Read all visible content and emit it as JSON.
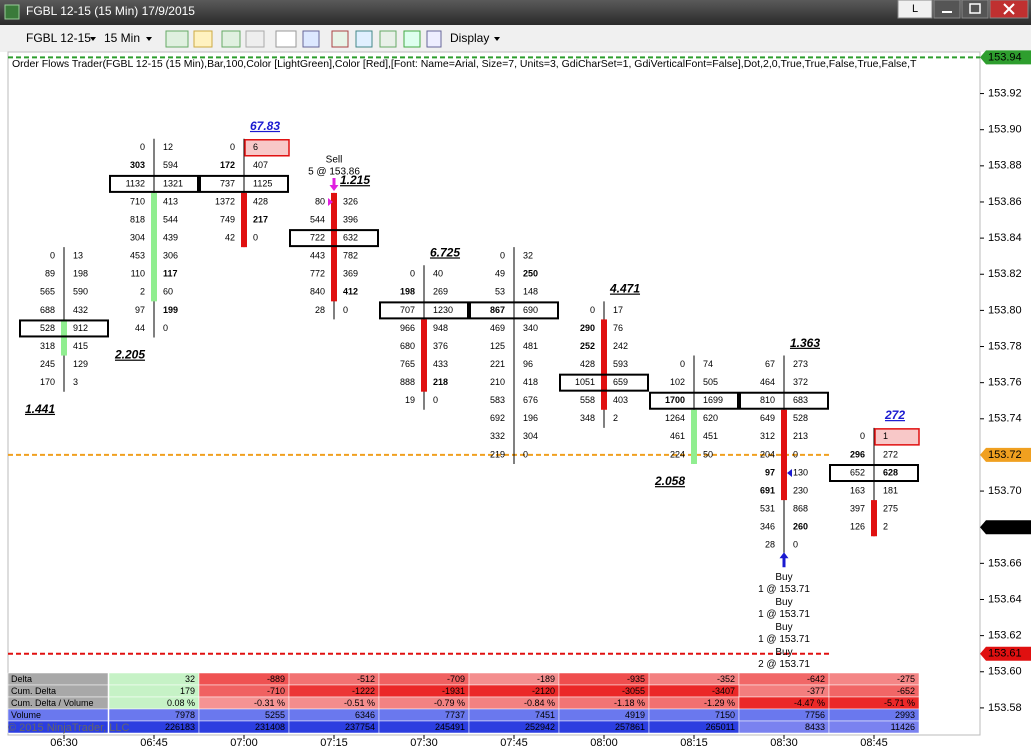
{
  "window": {
    "title": "FGBL 12-15 (15 Min)  17/9/2015",
    "button": "L"
  },
  "toolbar": {
    "instrument": "FGBL 12-15",
    "interval": "15 Min",
    "display": "Display"
  },
  "indicator_label": "Order Flows Trader(FGBL 12-15 (15 Min),Bar,100,Color [LightGreen],Color [Red],[Font: Name=Arial, Size=7, Units=3, GdiCharSet=1, GdiVerticalFont=False],Dot,2,0,True,True,False,True,False,T",
  "price_axis": {
    "ylim": [
      153.565,
      153.943
    ],
    "tick_size": 0.01,
    "ticks": [
      153.92,
      {
        "value": 153.9,
        "label": "153.90"
      },
      153.88,
      153.86,
      153.84,
      153.82,
      {
        "value": 153.8,
        "label": "153.80"
      },
      153.78,
      153.76,
      153.74,
      {
        "value": 153.7,
        "label": "153.70"
      },
      153.66,
      153.64,
      153.62,
      {
        "value": 153.6,
        "label": "153.60"
      },
      153.58
    ],
    "markers": [
      {
        "value": 153.94,
        "color": "#2e9e2e",
        "line": "#2e9e2e"
      },
      {
        "value": 153.72,
        "color": "#f0a020",
        "line": "#f0a020"
      },
      {
        "value": 153.68,
        "color": "#000000"
      },
      {
        "value": 153.61,
        "color": "#e01010",
        "line": "#e01010"
      }
    ]
  },
  "times": [
    "06:30",
    "06:45",
    "07:00",
    "07:15",
    "07:30",
    "07:45",
    "08:00",
    "08:15",
    "08:30",
    "08:45"
  ],
  "footprint": {
    "up_color": "#90ee90",
    "down_color": "#e01010",
    "bid_hi": "#e01010",
    "ask_hi": "#1a1ad0",
    "bars": [
      {
        "high": 153.83,
        "open": 153.78,
        "close": 153.79,
        "label": "1.441",
        "label_pos": "below",
        "rows": [
          {
            "bid": 0,
            "ask": 13
          },
          {
            "bid": 89,
            "ask": 198
          },
          {
            "bid": 565,
            "ask": 590
          },
          {
            "bid": 688,
            "ask": 432
          },
          {
            "bid": 528,
            "ask": 912,
            "box": true
          },
          {
            "bid": 318,
            "ask": 415
          },
          {
            "bid": 245,
            "ask": 129
          },
          {
            "bid": 170,
            "ask": 3
          }
        ]
      },
      {
        "high": 153.89,
        "open": 153.81,
        "close": 153.86,
        "label": "2.205",
        "label_pos": "below",
        "rows": [
          {
            "bid": 0,
            "ask": 12
          },
          {
            "bid": 303,
            "ask": 594,
            "bid_hi": true
          },
          {
            "bid": 1132,
            "ask": 1321,
            "box": true
          },
          {
            "bid": 710,
            "ask": 413
          },
          {
            "bid": 818,
            "ask": 544
          },
          {
            "bid": 304,
            "ask": 439
          },
          {
            "bid": 453,
            "ask": 306
          },
          {
            "bid": 110,
            "ask": 117,
            "ask_hi": true
          },
          {
            "bid": 2,
            "ask": 60
          },
          {
            "bid": 97,
            "ask": 199,
            "ask_hi": true
          },
          {
            "bid": 44,
            "ask": 0
          }
        ]
      },
      {
        "high": 153.89,
        "open": 153.86,
        "close": 153.84,
        "label": "67.83",
        "label_pos": "above",
        "label_color": "#1a1ad0",
        "rows": [
          {
            "bid": 0,
            "ask": 6,
            "ask_box": true
          },
          {
            "bid": 172,
            "ask": 407,
            "bid_hi": true
          },
          {
            "bid": 737,
            "ask": 1125,
            "box": true
          },
          {
            "bid": 1372,
            "ask": 428
          },
          {
            "bid": 749,
            "ask": 217,
            "ask_hi": true
          },
          {
            "bid": 42,
            "ask": 0
          }
        ]
      },
      {
        "high": 153.86,
        "open": 153.86,
        "close": 153.81,
        "label": "1.215",
        "label_pos": "above",
        "signal": [
          "Sell",
          "5 @ 153.86"
        ],
        "rows": [
          {
            "bid": 80,
            "ask": 326
          },
          {
            "bid": 544,
            "ask": 396
          },
          {
            "bid": 722,
            "ask": 632,
            "box": true
          },
          {
            "bid": 443,
            "ask": 782
          },
          {
            "bid": 772,
            "ask": 369
          },
          {
            "bid": 840,
            "ask": 412,
            "ask_hi": true
          },
          {
            "bid": 28,
            "ask": 0
          }
        ]
      },
      {
        "high": 153.82,
        "open": 153.79,
        "close": 153.76,
        "label": "6.725",
        "label_pos": "above",
        "rows": [
          {
            "bid": 0,
            "ask": 40
          },
          {
            "bid": 198,
            "ask": 269,
            "bid_hi": true
          },
          {
            "bid": 707,
            "ask": 1230,
            "box": true
          },
          {
            "bid": 966,
            "ask": 948
          },
          {
            "bid": 680,
            "ask": 376
          },
          {
            "bid": 765,
            "ask": 433
          },
          {
            "bid": 888,
            "ask": 218,
            "ask_hi": true
          },
          {
            "bid": 19,
            "ask": 0
          }
        ]
      },
      {
        "high": 153.83,
        "rows": [
          {
            "bid": 0,
            "ask": 32
          },
          {
            "bid": 49,
            "ask": 250,
            "ask_hi": true
          },
          {
            "bid": 53,
            "ask": 148
          },
          {
            "bid": 867,
            "ask": 690,
            "box": true,
            "bid_hi": true
          },
          {
            "bid": 469,
            "ask": 340
          },
          {
            "bid": 125,
            "ask": 481
          },
          {
            "bid": 221,
            "ask": 96
          },
          {
            "bid": 210,
            "ask": 418
          },
          {
            "bid": 583,
            "ask": 676
          },
          {
            "bid": 692,
            "ask": 196
          },
          {
            "bid": 332,
            "ask": 304
          },
          {
            "bid": 219,
            "ask": 0
          }
        ]
      },
      {
        "high": 153.8,
        "open": 153.79,
        "close": 153.75,
        "label": "4.471",
        "label_pos": "above",
        "rows": [
          {
            "bid": 0,
            "ask": 17
          },
          {
            "bid": 290,
            "ask": 76,
            "bid_hi": true
          },
          {
            "bid": 252,
            "ask": 242,
            "bid_hi": true
          },
          {
            "bid": 428,
            "ask": 593
          },
          {
            "bid": 1051,
            "ask": 659,
            "box": true
          },
          {
            "bid": 558,
            "ask": 403
          },
          {
            "bid": 348,
            "ask": 2
          }
        ]
      },
      {
        "high": 153.77,
        "open": 153.72,
        "close": 153.74,
        "label": "2.058",
        "label_pos": "below",
        "rows": [
          {
            "bid": 0,
            "ask": 74
          },
          {
            "bid": 102,
            "ask": 505
          },
          {
            "bid": 1700,
            "ask": 1699,
            "box": true,
            "bid_hi": true
          },
          {
            "bid": 1264,
            "ask": 620
          },
          {
            "bid": 461,
            "ask": 451
          },
          {
            "bid": 224,
            "ask": 50
          }
        ]
      },
      {
        "high": 153.77,
        "open": 153.74,
        "close": 153.7,
        "label": "1.363",
        "label_pos": "above",
        "buys": [
          [
            "Buy",
            "1 @ 153.71"
          ],
          [
            "Buy",
            "1 @ 153.71"
          ],
          [
            "Buy",
            "1 @ 153.71"
          ],
          [
            "Buy",
            "2 @ 153.71"
          ]
        ],
        "rows": [
          {
            "bid": 67,
            "ask": 273
          },
          {
            "bid": 464,
            "ask": 372
          },
          {
            "bid": 810,
            "ask": 683,
            "box": true
          },
          {
            "bid": 649,
            "ask": 528
          },
          {
            "bid": 312,
            "ask": 213
          },
          {
            "bid": 204,
            "ask": 0
          },
          {
            "bid": 97,
            "ask": 130,
            "bid_hi": true
          },
          {
            "bid": 691,
            "ask": 230,
            "bid_hi": true
          },
          {
            "bid": 531,
            "ask": 868
          },
          {
            "bid": 346,
            "ask": 260,
            "ask_hi": true
          },
          {
            "bid": 28,
            "ask": 0
          }
        ]
      },
      {
        "high": 153.73,
        "open": 153.69,
        "close": 153.68,
        "label": "272",
        "label_pos": "above",
        "label_color": "#1a1ad0",
        "rows": [
          {
            "bid": 0,
            "ask": 1,
            "ask_box": true
          },
          {
            "bid": 296,
            "ask": 272,
            "bid_hi": true
          },
          {
            "bid": 652,
            "ask": 628,
            "box": true,
            "ask_hi": true
          },
          {
            "bid": 163,
            "ask": 181
          },
          {
            "bid": 397,
            "ask": 275
          },
          {
            "bid": 126,
            "ask": 2
          }
        ]
      }
    ]
  },
  "table": {
    "copyright": "© 2015 NinjaTrader, LLC",
    "rows": [
      {
        "label": "Delta",
        "kind": "delta",
        "values": [
          "32",
          "-889",
          "-512",
          "-709",
          "-189",
          "-935",
          "-352",
          "-642",
          "-275"
        ]
      },
      {
        "label": "Cum. Delta",
        "kind": "delta",
        "values": [
          "179",
          "-710",
          "-1222",
          "-1931",
          "-2120",
          "-3055",
          "-3407",
          "-377",
          "-652"
        ]
      },
      {
        "label": "Cum. Delta / Volume",
        "kind": "delta",
        "values": [
          "0.08 %",
          "-0.31 %",
          "-0.51 %",
          "-0.79 %",
          "-0.84 %",
          "-1.18 %",
          "-1.29 %",
          "-4.47 %",
          "-5.71 %"
        ]
      },
      {
        "label": "Volume",
        "kind": "volume",
        "values": [
          "7978",
          "5255",
          "6346",
          "7737",
          "7451",
          "4919",
          "7150",
          "7756",
          "2993"
        ]
      },
      {
        "kind": "volume2",
        "values": [
          "226183",
          "231408",
          "237754",
          "245491",
          "252942",
          "257861",
          "265011",
          "8433",
          "11426"
        ]
      }
    ]
  }
}
